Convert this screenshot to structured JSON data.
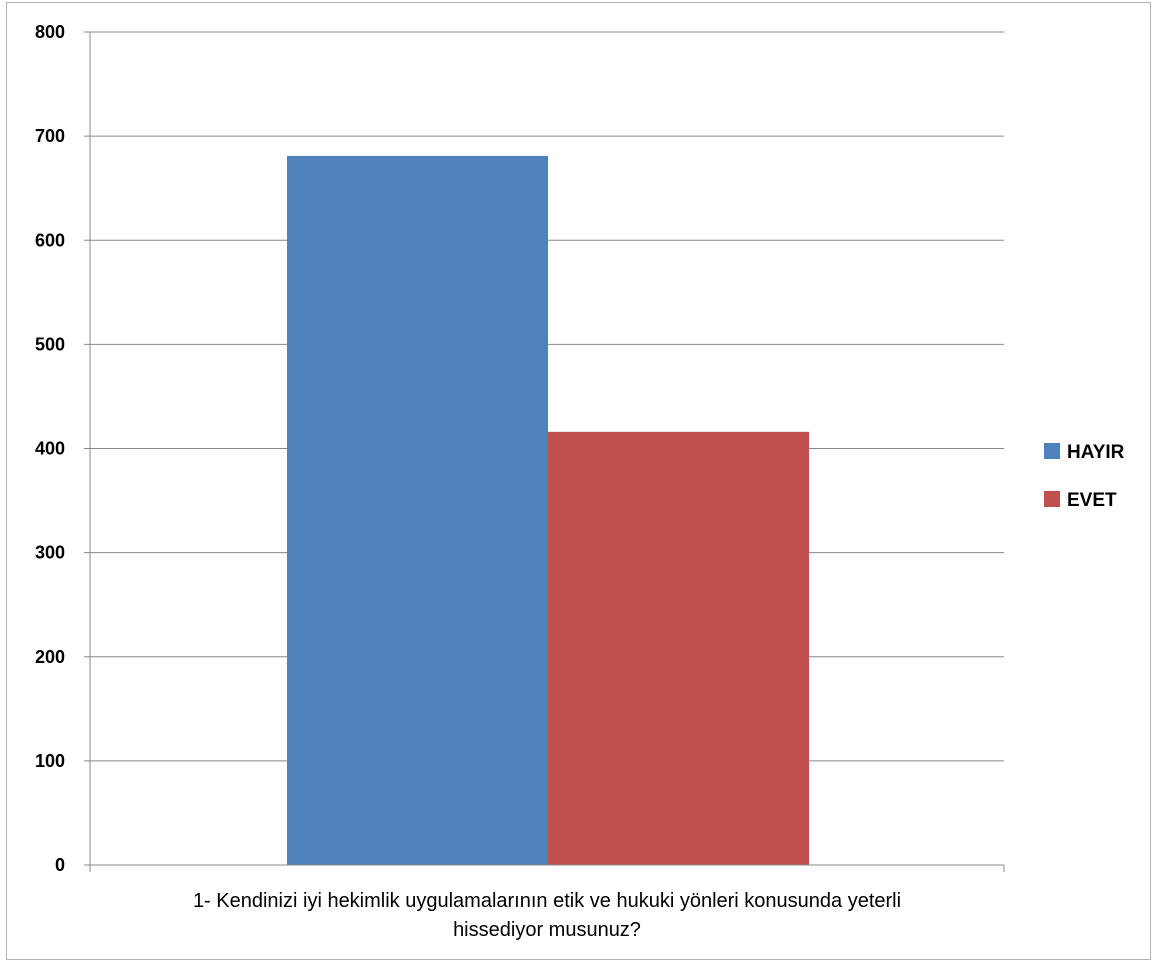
{
  "chart_data": {
    "type": "bar",
    "title": "",
    "categories": [
      "1- Kendinizi iyi hekimlik uygulamalarının etik ve hukuki yönleri konusunda yeterli hissediyor musunuz?"
    ],
    "xlabel_lines": [
      "1- Kendinizi iyi hekimlik uygulamalarının etik ve hukuki yönleri konusunda yeterli",
      "hissediyor musunuz?"
    ],
    "ylabel": "",
    "ylim": [
      0,
      800
    ],
    "yticks": [
      0,
      100,
      200,
      300,
      400,
      500,
      600,
      700,
      800
    ],
    "grid": true,
    "legend_position": "right",
    "series": [
      {
        "name": "HAYIR",
        "values": [
          681
        ],
        "color": "#4f81bd"
      },
      {
        "name": "EVET",
        "values": [
          416
        ],
        "color": "#c0504d"
      }
    ]
  }
}
